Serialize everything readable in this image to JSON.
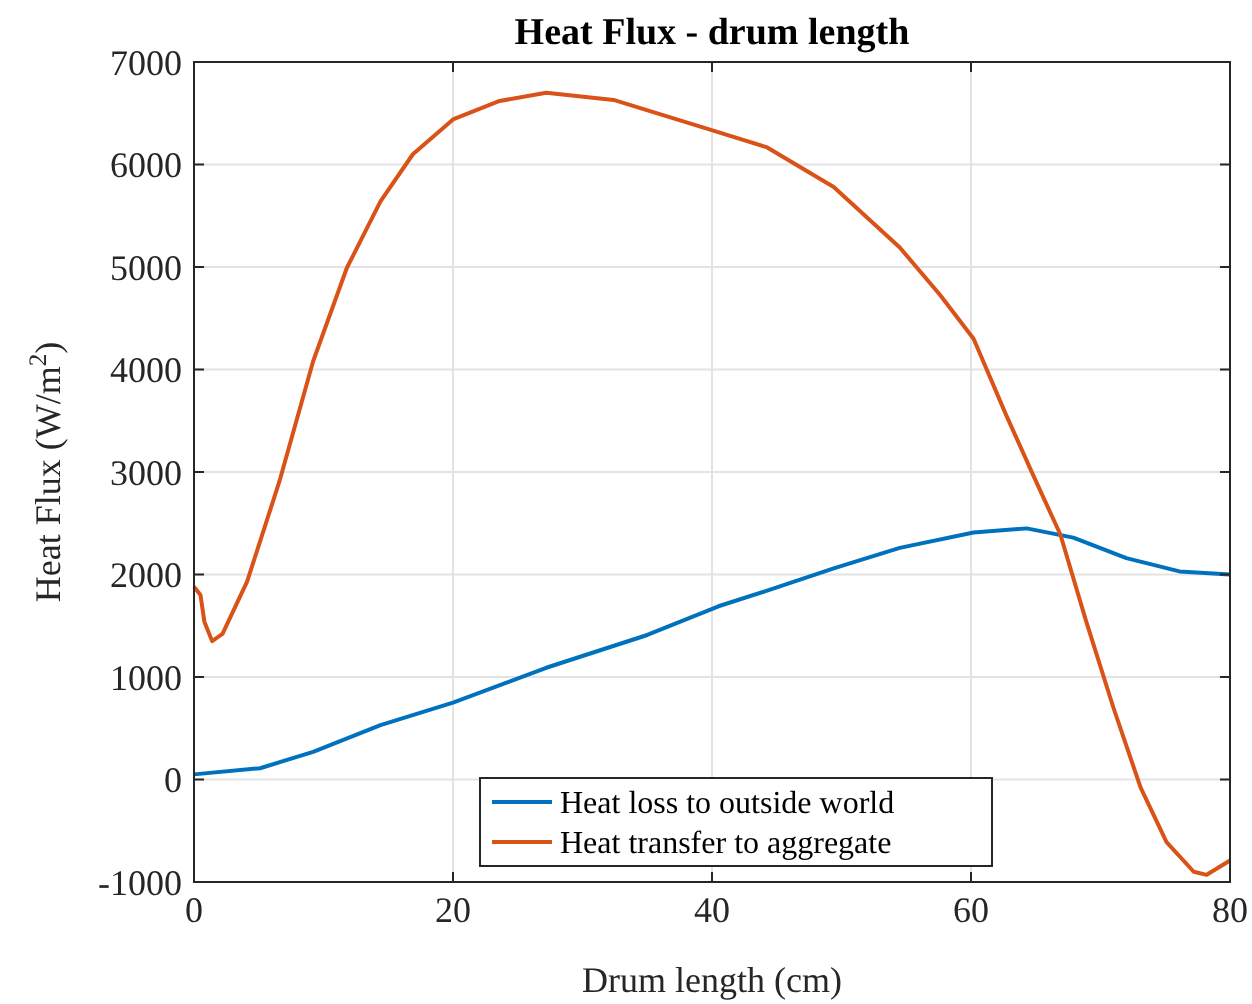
{
  "chart_data": {
    "type": "line",
    "title": "Heat Flux - drum length",
    "xlabel": "Drum length (cm)",
    "ylabel": "Heat Flux (W/m$^{2}$)",
    "xlim": [
      0,
      80
    ],
    "xticks": [
      0,
      20,
      40,
      60,
      80
    ],
    "ylim": [
      -1000,
      7000
    ],
    "yticks": [
      -1000,
      0,
      1000,
      2000,
      3000,
      4000,
      5000,
      6000,
      7000
    ],
    "grid": true,
    "legend": "bottom",
    "line_style": "solid",
    "marker": "none",
    "series": [
      {
        "name": "Heat loss to outside world",
        "color": "#0072bd",
        "x": [
          0,
          5.1,
          9.2,
          14.4,
          20,
          27.2,
          35,
          40.5,
          44.2,
          49.4,
          54.5,
          60.2,
          64.3,
          67.9,
          72,
          76.1,
          80
        ],
        "values": [
          50,
          110,
          270,
          530,
          750,
          1090,
          1410,
          1690,
          1840,
          2060,
          2260,
          2410,
          2450,
          2360,
          2160,
          2030,
          2000
        ]
      },
      {
        "name": "Heat transfer to aggregate",
        "color": "#d95319",
        "x": [
          0,
          0.5,
          0.8,
          1.4,
          2.2,
          4.1,
          6.6,
          9.2,
          11.8,
          14.4,
          16.9,
          20,
          23.6,
          27.2,
          32.4,
          40.1,
          44.2,
          49.4,
          54.5,
          57.6,
          60.2,
          62.7,
          64.8,
          66.9,
          68.9,
          71,
          73.1,
          75.1,
          77.2,
          78.2,
          80
        ],
        "values": [
          1880,
          1800,
          1540,
          1350,
          1420,
          1930,
          2910,
          4080,
          4990,
          5640,
          6100,
          6440,
          6620,
          6700,
          6630,
          6330,
          6170,
          5780,
          5190,
          4730,
          4300,
          3560,
          2970,
          2390,
          1540,
          700,
          -80,
          -610,
          -900,
          -930,
          -790
        ]
      }
    ]
  }
}
